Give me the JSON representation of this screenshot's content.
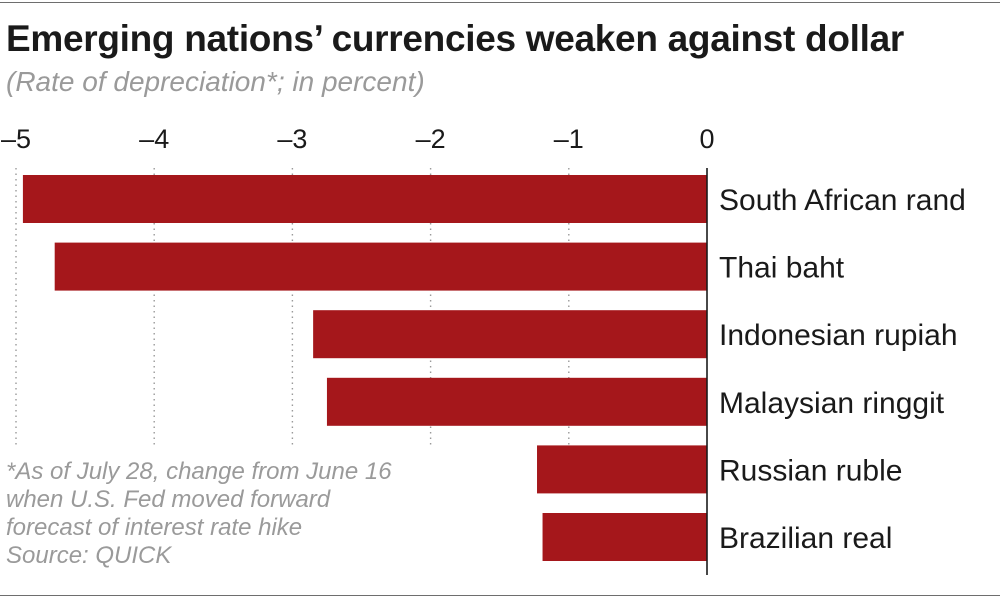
{
  "chart_data": {
    "type": "bar",
    "orientation": "horizontal",
    "title": "Emerging nations’ currencies weaken against dollar",
    "subtitle": "(Rate of depreciation*; in percent)",
    "categories": [
      "South African rand",
      "Thai baht",
      "Indonesian rupiah",
      "Malaysian ringgit",
      "Russian ruble",
      "Brazilian real"
    ],
    "values": [
      -4.95,
      -4.72,
      -2.85,
      -2.75,
      -1.23,
      -1.19
    ],
    "xlim": [
      -5,
      0
    ],
    "xticks": [
      -5,
      -4,
      -3,
      -2,
      -1,
      0
    ],
    "xtick_labels": [
      "–5",
      "–4",
      "–3",
      "–2",
      "–1",
      "0"
    ],
    "axis_position": "top",
    "grid": "vertical-dotted",
    "bar_color": "#a5171b",
    "footnote": [
      "*As of July 28, change from June 16",
      "when U.S. Fed moved forward",
      "forecast of interest rate hike",
      "Source: QUICK"
    ]
  }
}
